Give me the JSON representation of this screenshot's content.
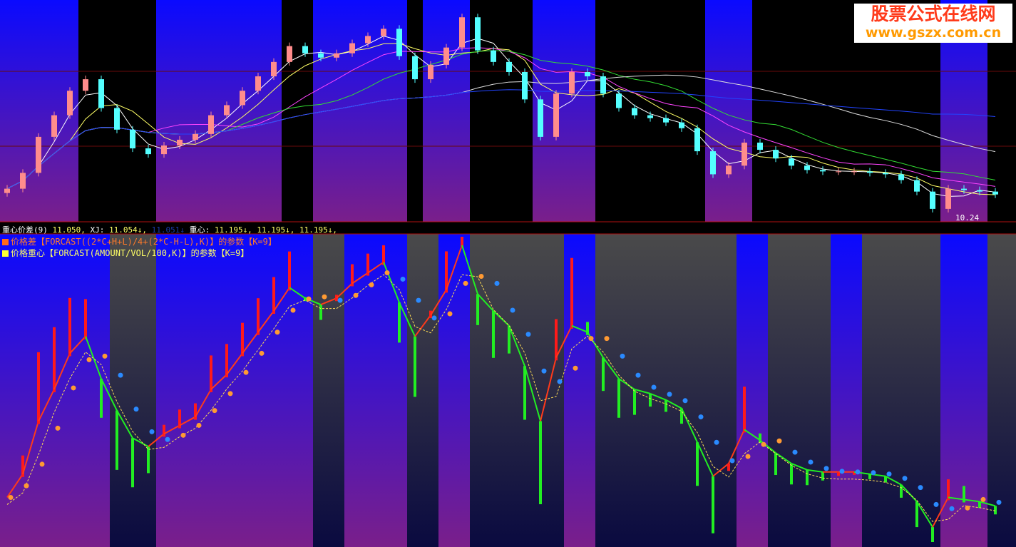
{
  "header": {
    "indicator_name": "重心价差(9)",
    "value1": "11.050,",
    "xj_label": "XJ:",
    "xj_value": "11.054↓,",
    "hidden_value": "11.051↓",
    "center_label": "重心:",
    "center_values": "11.195↓, 11.195↓, 11.195↓,",
    "line2": "价格差【FORCAST((2*C+H+L)/4+(2*C-H-L),K)】的参数【K=9】",
    "line3": "价格重心【FORCAST(AMOUNT/VOL/100,K)】的参数【K=9】"
  },
  "logo": {
    "title": "股票公式在线网",
    "url": "www.gszx.com.cn"
  },
  "price_labels": {
    "low": "10.24"
  },
  "colors": {
    "up_candle": "#ff8c8c",
    "down_candle": "#54ffff",
    "signal_band_top": "#0a0aff",
    "signal_band_bottom": "#7a1f8a",
    "neutral_band_top": "#4a4a4a",
    "neutral_band_bottom": "#0a0a40",
    "rising_line": "#ff3a1a",
    "falling_line": "#22ee22",
    "rising_dot": "#ff9a33",
    "falling_dot": "#2a8aff",
    "ma5": "#ffffff",
    "ma10": "#ffff66",
    "ma20": "#ff44ff",
    "ma30": "#33dd33",
    "ma60": "#dddddd",
    "ma120": "#2244ff"
  },
  "chart_data": {
    "type": "candlestick",
    "ylim": [
      10.24,
      11.75
    ],
    "closes": [
      10.44,
      10.55,
      10.8,
      10.95,
      11.12,
      11.2,
      11.0,
      10.85,
      10.72,
      10.68,
      10.74,
      10.78,
      10.82,
      10.95,
      11.02,
      11.12,
      11.22,
      11.32,
      11.43,
      11.38,
      11.35,
      11.38,
      11.45,
      11.5,
      11.55,
      11.36,
      11.2,
      11.3,
      11.42,
      11.63,
      11.4,
      11.32,
      11.25,
      11.06,
      10.8,
      11.1,
      11.25,
      11.22,
      11.1,
      11.0,
      10.95,
      10.93,
      10.9,
      10.86,
      10.7,
      10.54,
      10.6,
      10.76,
      10.71,
      10.65,
      10.6,
      10.57,
      10.56,
      10.56,
      10.56,
      10.55,
      10.54,
      10.5,
      10.42,
      10.3,
      10.44,
      10.43,
      10.42,
      10.4
    ],
    "upper_signal_periods": [
      [
        0,
        4
      ],
      [
        10,
        17
      ],
      [
        20,
        25
      ],
      [
        27,
        29
      ],
      [
        34,
        37
      ],
      [
        45,
        47
      ],
      [
        60,
        62
      ]
    ],
    "lower_signal_periods": [
      [
        0,
        6
      ],
      [
        10,
        19
      ],
      [
        22,
        25
      ],
      [
        28,
        29
      ],
      [
        36,
        37
      ],
      [
        47,
        48
      ],
      [
        53,
        54
      ],
      [
        60,
        62
      ]
    ]
  }
}
